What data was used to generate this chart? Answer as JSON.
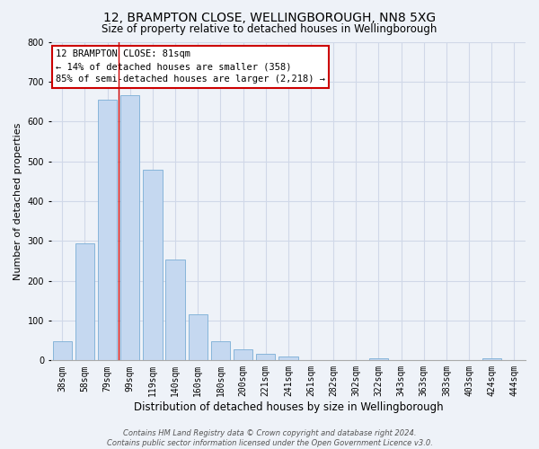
{
  "title": "12, BRAMPTON CLOSE, WELLINGBOROUGH, NN8 5XG",
  "subtitle": "Size of property relative to detached houses in Wellingborough",
  "xlabel": "Distribution of detached houses by size in Wellingborough",
  "ylabel": "Number of detached properties",
  "bin_labels": [
    "38sqm",
    "58sqm",
    "79sqm",
    "99sqm",
    "119sqm",
    "140sqm",
    "160sqm",
    "180sqm",
    "200sqm",
    "221sqm",
    "241sqm",
    "261sqm",
    "282sqm",
    "302sqm",
    "322sqm",
    "343sqm",
    "363sqm",
    "383sqm",
    "403sqm",
    "424sqm",
    "444sqm"
  ],
  "bar_heights": [
    47,
    293,
    655,
    665,
    478,
    254,
    115,
    48,
    28,
    16,
    10,
    0,
    0,
    0,
    6,
    0,
    0,
    0,
    0,
    6,
    0
  ],
  "bar_color": "#c5d8f0",
  "bar_edge_color": "#7aaed6",
  "grid_color": "#d0d8e8",
  "background_color": "#eef2f8",
  "annotation_box_text": "12 BRAMPTON CLOSE: 81sqm\n← 14% of detached houses are smaller (358)\n85% of semi-detached houses are larger (2,218) →",
  "annotation_box_color": "#ffffff",
  "annotation_box_edge_color": "#cc0000",
  "red_line_color": "#cc0000",
  "footnote": "Contains HM Land Registry data © Crown copyright and database right 2024.\nContains public sector information licensed under the Open Government Licence v3.0.",
  "ylim": [
    0,
    800
  ],
  "yticks": [
    0,
    100,
    200,
    300,
    400,
    500,
    600,
    700,
    800
  ],
  "title_fontsize": 10,
  "subtitle_fontsize": 8.5,
  "xlabel_fontsize": 8.5,
  "ylabel_fontsize": 8,
  "tick_fontsize": 7,
  "annotation_fontsize": 7.5,
  "footnote_fontsize": 6
}
